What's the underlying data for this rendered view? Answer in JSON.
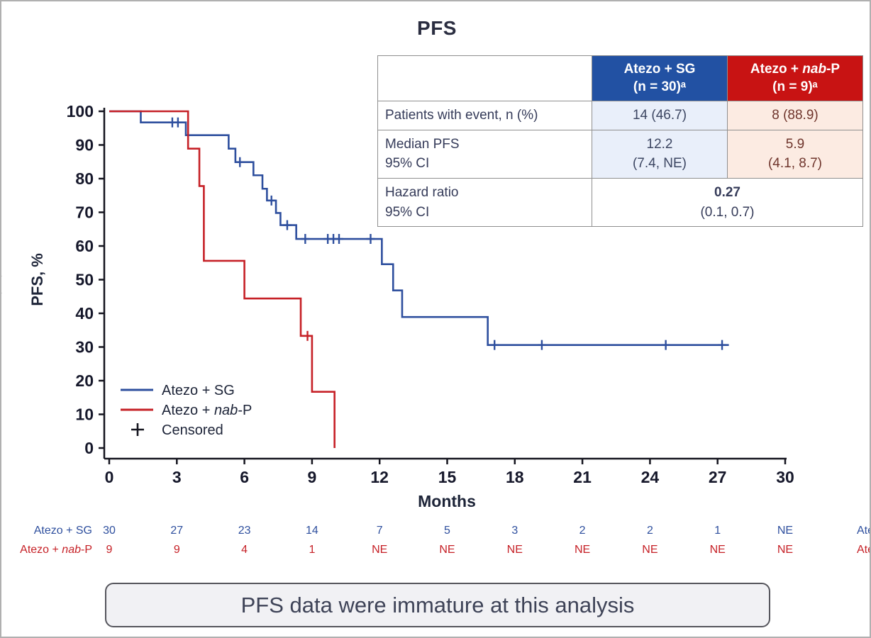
{
  "title": "PFS",
  "banner": {
    "text": "PFS data were immature at this analysis"
  },
  "colors": {
    "sg_header": "#2251a3",
    "nabp_header": "#c81313",
    "curve_blue": "#2e4f9e",
    "curve_red": "#c62127"
  },
  "edge_artifact": "(",
  "results_table": {
    "header": {
      "sg_line1": "Atezo + SG",
      "sg_line2": "(n = 30)ᵃ",
      "nabp_pre": "Atezo + ",
      "nabp_italic": "nab",
      "nabp_post": "-P",
      "nabp_line2": "(n = 9)ᵃ"
    },
    "row_event": {
      "label": "Patients with event, n (%)",
      "sg": "14 (46.7)",
      "nabp": "8 (88.9)"
    },
    "row_median": {
      "label1": "Median PFS",
      "label2": "95% CI",
      "sg1": "12.2",
      "sg2": "(7.4, NE)",
      "nabp1": "5.9",
      "nabp2": "(4.1, 8.7)"
    },
    "row_hr": {
      "label1": "Hazard ratio",
      "label2": "95% CI",
      "value1": "0.27",
      "value2": "(0.1, 0.7)"
    }
  },
  "chart_data": {
    "type": "line",
    "subtype": "kaplan_meier_step",
    "title": "PFS",
    "xlabel": "Months",
    "ylabel": "PFS, %",
    "xlim": [
      0,
      30
    ],
    "ylim": [
      0,
      100
    ],
    "xticks": [
      0,
      3,
      6,
      9,
      12,
      15,
      18,
      21,
      24,
      27,
      30
    ],
    "yticks": [
      0,
      10,
      20,
      30,
      40,
      50,
      60,
      70,
      80,
      90,
      100
    ],
    "grid": false,
    "legend": {
      "position": "lower-left",
      "censored_label": "Censored"
    },
    "series": [
      {
        "name": "Atezo + SG",
        "label_parts": [
          {
            "t": "Atezo + SG"
          }
        ],
        "color": "#2e4f9e",
        "steps": [
          [
            0,
            100
          ],
          [
            1.4,
            96.7
          ],
          [
            3.4,
            92.9
          ],
          [
            5.3,
            88.9
          ],
          [
            5.6,
            84.9
          ],
          [
            6.4,
            81.0
          ],
          [
            6.8,
            77.0
          ],
          [
            7.0,
            73.5
          ],
          [
            7.4,
            69.8
          ],
          [
            7.6,
            66.2
          ],
          [
            8.3,
            62.1
          ],
          [
            12.1,
            54.6
          ],
          [
            12.6,
            46.8
          ],
          [
            13.0,
            38.9
          ],
          [
            16.8,
            30.6
          ],
          [
            27.5,
            30.6
          ]
        ],
        "censors": [
          [
            2.8,
            96.7
          ],
          [
            3.05,
            96.7
          ],
          [
            5.8,
            84.9
          ],
          [
            7.2,
            73.5
          ],
          [
            7.9,
            66.2
          ],
          [
            8.7,
            62.1
          ],
          [
            9.7,
            62.1
          ],
          [
            9.95,
            62.1
          ],
          [
            10.2,
            62.1
          ],
          [
            11.6,
            62.1
          ],
          [
            17.1,
            30.6
          ],
          [
            19.2,
            30.6
          ],
          [
            24.7,
            30.6
          ],
          [
            27.2,
            30.6
          ]
        ]
      },
      {
        "name": "Atezo + nab-P",
        "label_parts": [
          {
            "t": "Atezo + "
          },
          {
            "t": "nab",
            "i": true
          },
          {
            "t": "-P"
          }
        ],
        "color": "#c62127",
        "steps": [
          [
            0,
            100
          ],
          [
            3.5,
            88.9
          ],
          [
            4.0,
            77.8
          ],
          [
            4.2,
            55.6
          ],
          [
            6.0,
            44.4
          ],
          [
            8.5,
            33.3
          ],
          [
            9.0,
            16.7
          ],
          [
            10.0,
            0
          ]
        ],
        "censors": [
          [
            8.8,
            33.3
          ]
        ]
      }
    ],
    "at_risk": {
      "rows": [
        {
          "values": [
            "30",
            "27",
            "23",
            "14",
            "7",
            "5",
            "3",
            "2",
            "2",
            "1",
            "NE"
          ]
        },
        {
          "values": [
            "9",
            "9",
            "4",
            "1",
            "NE",
            "NE",
            "NE",
            "NE",
            "NE",
            "NE",
            "NE"
          ]
        }
      ],
      "repeat_labels_right_edge": true
    }
  }
}
